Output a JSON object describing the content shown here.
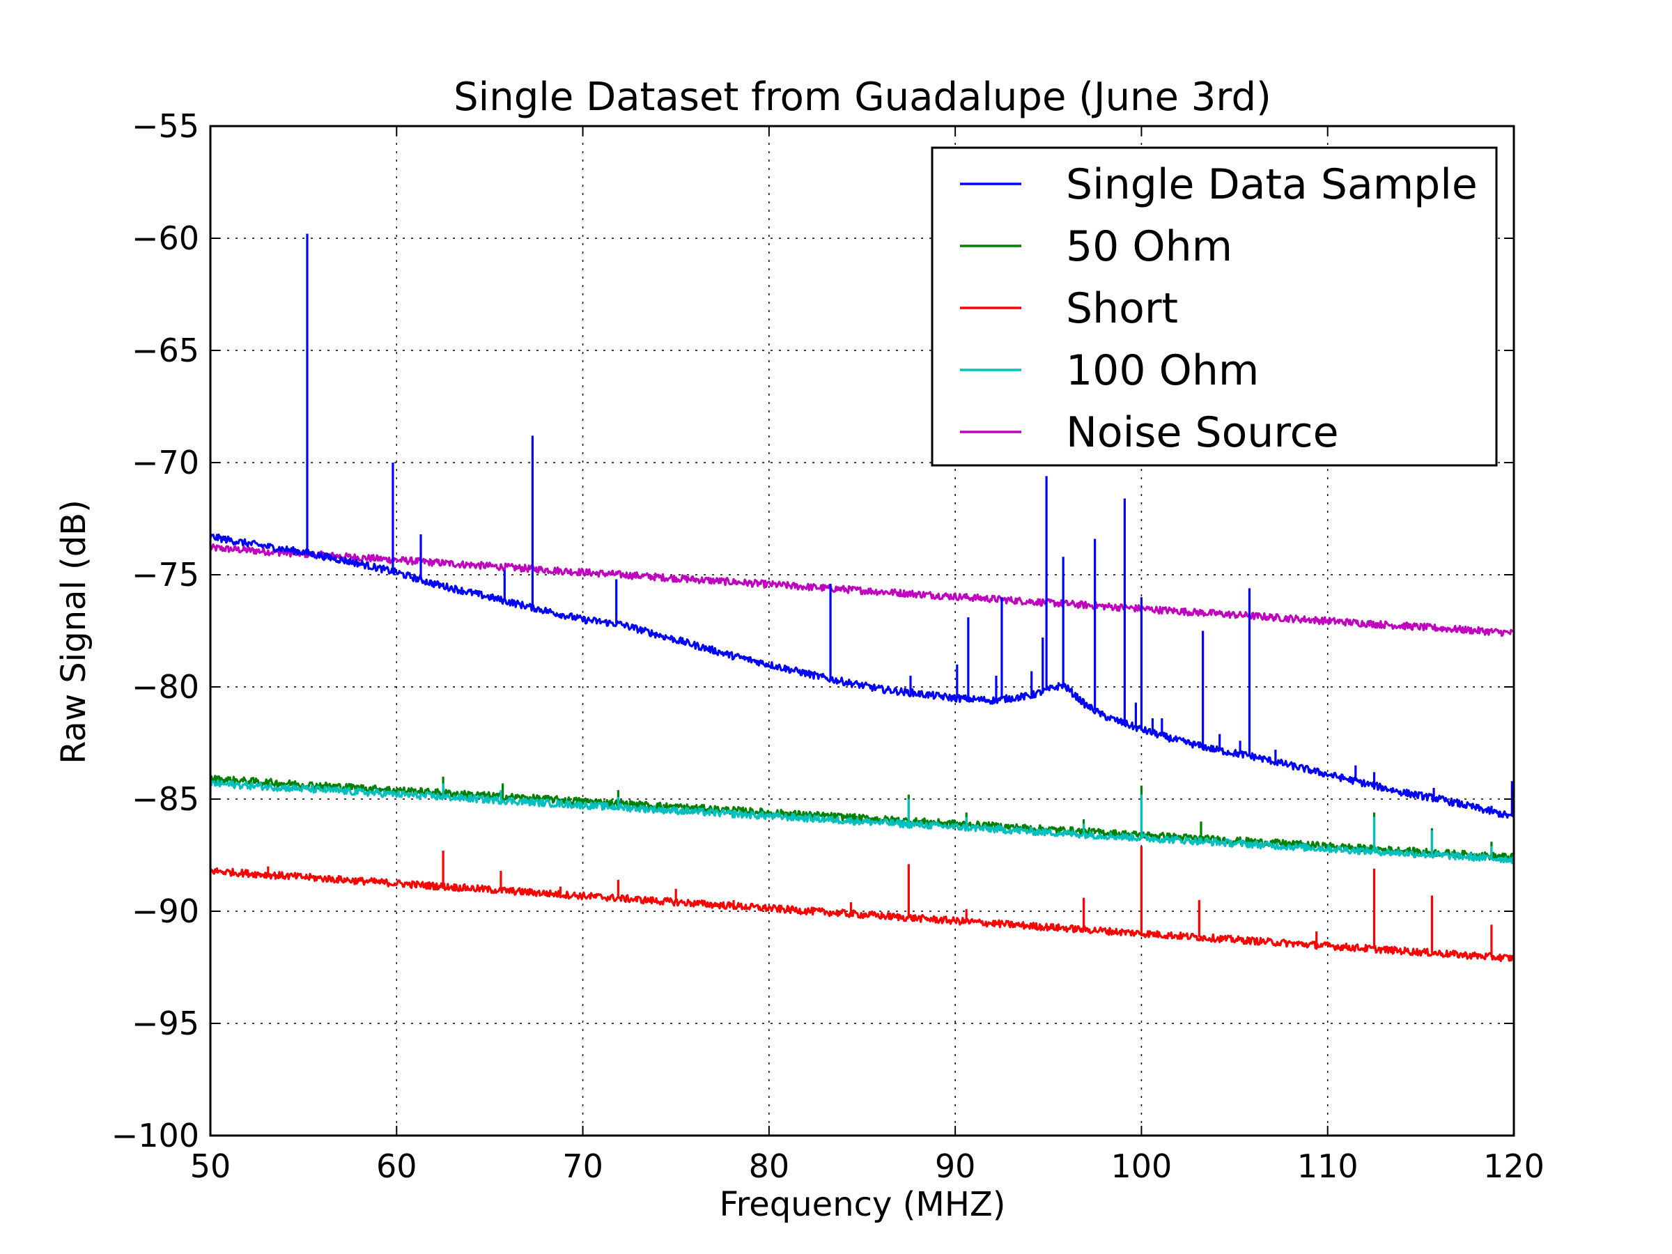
{
  "chart_data": {
    "type": "line",
    "title": "Single Dataset from Guadalupe (June 3rd)",
    "xlabel": "Frequency (MHZ)",
    "ylabel": "Raw Signal (dB)",
    "xlim": [
      50,
      120
    ],
    "ylim": [
      -100,
      -55
    ],
    "xticks": [
      50,
      60,
      70,
      80,
      90,
      100,
      110,
      120
    ],
    "yticks": [
      -100,
      -95,
      -90,
      -85,
      -80,
      -75,
      -70,
      -65,
      -60,
      -55
    ],
    "xtick_labels": [
      "50",
      "60",
      "70",
      "80",
      "90",
      "100",
      "110",
      "120"
    ],
    "ytick_labels": [
      "−100",
      "−95",
      "−90",
      "−85",
      "−80",
      "−75",
      "−70",
      "−65",
      "−60",
      "−55"
    ],
    "grid": true,
    "legend_position": "top-right",
    "series": [
      {
        "name": "Single Data Sample",
        "color": "#0000ff",
        "x": [
          50,
          52,
          55,
          58,
          60,
          62,
          65,
          67,
          70,
          72,
          75,
          78,
          80,
          83,
          86,
          88,
          90,
          92,
          94,
          95.8,
          97,
          98,
          100,
          102,
          104,
          106,
          108,
          110,
          112,
          114,
          116,
          118,
          120
        ],
        "y": [
          -73.3,
          -73.6,
          -74.0,
          -74.5,
          -74.9,
          -75.4,
          -76.0,
          -76.4,
          -77.0,
          -77.2,
          -77.9,
          -78.6,
          -79.0,
          -79.6,
          -80.1,
          -80.3,
          -80.5,
          -80.6,
          -80.4,
          -79.9,
          -80.8,
          -81.3,
          -81.9,
          -82.4,
          -82.8,
          -83.1,
          -83.5,
          -83.9,
          -84.3,
          -84.7,
          -85.0,
          -85.4,
          -85.8
        ],
        "spikes": [
          [
            55.2,
            -59.8
          ],
          [
            59.8,
            -70.0
          ],
          [
            61.3,
            -73.2
          ],
          [
            65.8,
            -74.8
          ],
          [
            67.3,
            -68.8
          ],
          [
            71.8,
            -75.2
          ],
          [
            83.3,
            -75.4
          ],
          [
            87.6,
            -79.5
          ],
          [
            90.1,
            -79.0
          ],
          [
            90.7,
            -76.9
          ],
          [
            92.2,
            -79.5
          ],
          [
            92.5,
            -76.0
          ],
          [
            94.1,
            -79.3
          ],
          [
            94.7,
            -77.8
          ],
          [
            94.9,
            -70.6
          ],
          [
            95.8,
            -74.2
          ],
          [
            97.5,
            -73.4
          ],
          [
            99.1,
            -71.6
          ],
          [
            99.7,
            -80.7
          ],
          [
            100.0,
            -76.0
          ],
          [
            100.6,
            -81.4
          ],
          [
            101.1,
            -81.4
          ],
          [
            103.3,
            -77.5
          ],
          [
            104.2,
            -82.1
          ],
          [
            105.3,
            -82.4
          ],
          [
            105.8,
            -75.6
          ],
          [
            107.2,
            -82.8
          ],
          [
            111.5,
            -83.5
          ],
          [
            112.5,
            -83.8
          ],
          [
            114.6,
            -84.7
          ],
          [
            115.7,
            -84.5
          ],
          [
            118.8,
            -85.3
          ],
          [
            119.9,
            -84.2
          ]
        ]
      },
      {
        "name": "50 Ohm",
        "color": "#008000",
        "x": [
          50,
          120
        ],
        "y": [
          -84.1,
          -87.6
        ],
        "spikes": [
          [
            62.5,
            -84.0
          ],
          [
            65.7,
            -84.3
          ],
          [
            71.9,
            -84.6
          ],
          [
            87.5,
            -84.8
          ],
          [
            90.6,
            -85.6
          ],
          [
            96.9,
            -85.9
          ],
          [
            100.0,
            -84.4
          ],
          [
            103.2,
            -86.0
          ],
          [
            112.5,
            -85.6
          ],
          [
            115.6,
            -86.3
          ],
          [
            118.8,
            -86.9
          ]
        ]
      },
      {
        "name": "Short",
        "color": "#ff0000",
        "x": [
          50,
          120
        ],
        "y": [
          -88.2,
          -92.1
        ],
        "spikes": [
          [
            53.1,
            -88.0
          ],
          [
            62.5,
            -87.3
          ],
          [
            65.6,
            -88.2
          ],
          [
            68.8,
            -88.9
          ],
          [
            71.9,
            -88.6
          ],
          [
            75.0,
            -89.0
          ],
          [
            78.1,
            -89.5
          ],
          [
            81.3,
            -89.8
          ],
          [
            84.4,
            -89.6
          ],
          [
            87.5,
            -87.9
          ],
          [
            90.6,
            -89.9
          ],
          [
            96.9,
            -89.4
          ],
          [
            100.0,
            -87.1
          ],
          [
            103.1,
            -89.5
          ],
          [
            109.4,
            -90.9
          ],
          [
            112.5,
            -88.1
          ],
          [
            115.6,
            -89.3
          ],
          [
            118.8,
            -90.6
          ]
        ]
      },
      {
        "name": "100 Ohm",
        "color": "#00bfbf",
        "x": [
          50,
          120
        ],
        "y": [
          -84.3,
          -87.7
        ],
        "spikes": [
          [
            62.5,
            -84.3
          ],
          [
            65.6,
            -84.6
          ],
          [
            71.9,
            -84.9
          ],
          [
            87.5,
            -85.0
          ],
          [
            90.6,
            -85.8
          ],
          [
            96.9,
            -86.1
          ],
          [
            100.0,
            -84.8
          ],
          [
            112.5,
            -85.8
          ],
          [
            115.6,
            -86.4
          ],
          [
            118.8,
            -87.1
          ]
        ]
      },
      {
        "name": "Noise Source",
        "color": "#bf00bf",
        "x": [
          50,
          120
        ],
        "y": [
          -73.8,
          -77.6
        ],
        "spikes": []
      }
    ]
  }
}
